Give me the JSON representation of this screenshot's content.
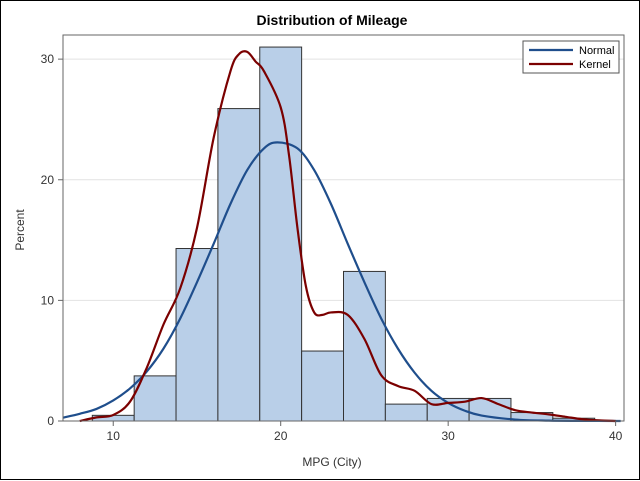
{
  "chart_data": {
    "type": "bar",
    "title": "Distribution of Mileage",
    "xlabel": "MPG (City)",
    "ylabel": "Percent",
    "xlim": [
      7,
      40.5
    ],
    "ylim": [
      0,
      32
    ],
    "xticks": [
      10,
      20,
      30,
      40
    ],
    "yticks": [
      0,
      10,
      20,
      30
    ],
    "grid": "horizontal",
    "legend_position": "top-right",
    "bin_width": 2.5,
    "bins": [
      {
        "start": 8.75,
        "end": 11.25,
        "percent": 0.47
      },
      {
        "start": 11.25,
        "end": 13.75,
        "percent": 3.74
      },
      {
        "start": 13.75,
        "end": 16.25,
        "percent": 14.3
      },
      {
        "start": 16.25,
        "end": 18.75,
        "percent": 25.9
      },
      {
        "start": 18.75,
        "end": 21.25,
        "percent": 31.0
      },
      {
        "start": 21.25,
        "end": 23.75,
        "percent": 5.8
      },
      {
        "start": 23.75,
        "end": 26.25,
        "percent": 12.4
      },
      {
        "start": 26.25,
        "end": 28.75,
        "percent": 1.4
      },
      {
        "start": 28.75,
        "end": 31.25,
        "percent": 1.87
      },
      {
        "start": 31.25,
        "end": 33.75,
        "percent": 1.87
      },
      {
        "start": 33.75,
        "end": 36.25,
        "percent": 0.7
      },
      {
        "start": 36.25,
        "end": 38.75,
        "percent": 0.23
      }
    ],
    "series": [
      {
        "name": "Normal",
        "color": "#1f4e8c",
        "x": [
          7,
          8,
          9,
          10,
          11,
          12,
          13,
          14,
          15,
          16,
          17,
          18,
          19,
          19.8,
          21,
          22,
          23,
          24,
          25,
          26,
          27,
          28,
          29,
          30,
          31,
          32,
          34,
          36,
          38,
          40.3
        ],
        "y": [
          0.28,
          0.6,
          1.0,
          1.7,
          2.7,
          4.1,
          6.0,
          8.5,
          11.5,
          14.7,
          18.0,
          20.8,
          22.6,
          23.1,
          22.6,
          20.8,
          18.0,
          14.7,
          11.5,
          8.5,
          6.0,
          4.0,
          2.5,
          1.5,
          0.85,
          0.45,
          0.12,
          0.03,
          0.01,
          0.0
        ]
      },
      {
        "name": "Kernel",
        "color": "#7b0000",
        "x": [
          8,
          9,
          10,
          11,
          12,
          13,
          14,
          15,
          16,
          17,
          17.5,
          18,
          18.5,
          19,
          20,
          20.5,
          21,
          21.5,
          22,
          22.5,
          23,
          24,
          25,
          26,
          27,
          28,
          29,
          30,
          31,
          32,
          33,
          34,
          35,
          36,
          37,
          38,
          39,
          40
        ],
        "y": [
          0.0,
          0.3,
          0.5,
          1.6,
          4.4,
          8.0,
          11.0,
          16.0,
          23.5,
          29.0,
          30.4,
          30.6,
          29.8,
          29.0,
          26.0,
          22.0,
          16.0,
          11.2,
          9.0,
          8.8,
          9.0,
          8.8,
          6.8,
          3.8,
          2.9,
          2.5,
          1.4,
          1.5,
          1.6,
          1.9,
          1.4,
          0.9,
          0.7,
          0.55,
          0.35,
          0.15,
          0.05,
          0.0
        ]
      }
    ],
    "colors": {
      "bar_fill": "#b9cfe8",
      "bar_stroke": "#333333",
      "grid": "#e2e2e2",
      "axis": "#666666"
    }
  }
}
